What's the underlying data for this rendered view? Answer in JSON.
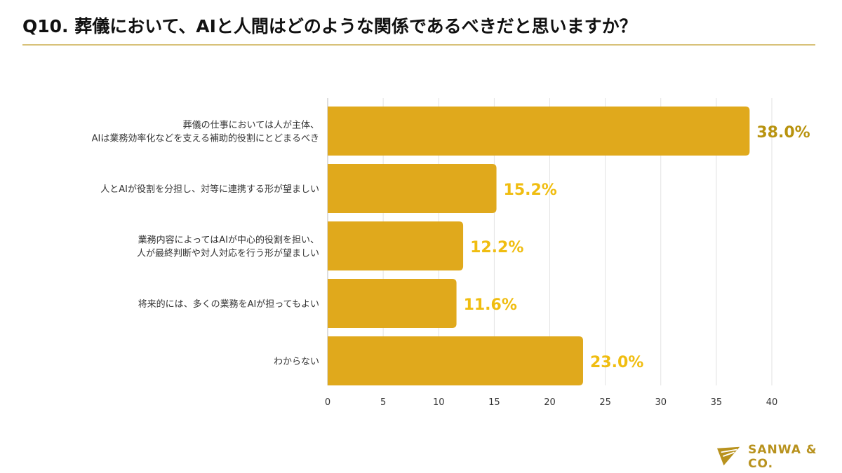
{
  "title": "Q10. 葬儀において、AIと人間はどのような関係であるべきだと思いますか？",
  "brand": "SANWA & CO.",
  "colors": {
    "bar": "#e0a91c",
    "label_top": "#b8930f",
    "label": "#f0bd10",
    "grid": "#e2e2e2",
    "rule": "#d8c27a"
  },
  "chart_data": {
    "type": "bar",
    "orientation": "horizontal",
    "categories": [
      [
        "葬儀の仕事においては人が主体、",
        "AIは業務効率化などを支える補助的役割にとどまるべき"
      ],
      [
        "人とAIが役割を分担し、対等に連携する形が望ましい"
      ],
      [
        "業務内容によってはAIが中心的役割を担い、",
        "人が最終判断や対人対応を行う形が望ましい"
      ],
      [
        "将来的には、多くの業務をAIが担ってもよい"
      ],
      [
        "わからない"
      ]
    ],
    "values": [
      38.0,
      15.2,
      12.2,
      11.6,
      23.0
    ],
    "data_labels": [
      "38.0%",
      "15.2%",
      "12.2%",
      "11.6%",
      "23.0%"
    ],
    "xlim": [
      0,
      40
    ],
    "xticks": [
      "0",
      "5",
      "10",
      "15",
      "20",
      "25",
      "30",
      "35",
      "40"
    ],
    "grid": true
  }
}
